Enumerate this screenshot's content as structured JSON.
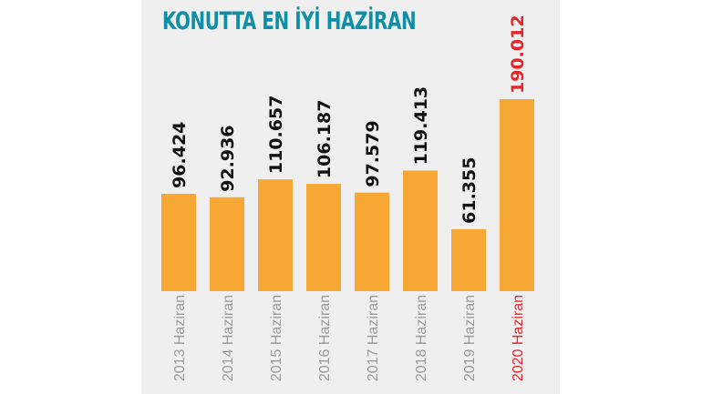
{
  "title": "KONUTTA EN İYİ HAZİRAN",
  "colors": {
    "title": "#0f8fa6",
    "bar": "#f7a733",
    "value_text": "#111111",
    "highlight_text": "#e4252b",
    "tick_text": "#9a9a9a",
    "background": "#efefef"
  },
  "chart_data": {
    "type": "bar",
    "categories": [
      "2013 Haziran",
      "2014 Haziran",
      "2015 Haziran",
      "2016 Haziran",
      "2017 Haziran",
      "2018 Haziran",
      "2019 Haziran",
      "2020 Haziran"
    ],
    "values": [
      96424,
      92936,
      110657,
      106187,
      97579,
      119413,
      61355,
      190012
    ],
    "value_labels": [
      "96.424",
      "92.936",
      "110.657",
      "106.187",
      "97.579",
      "119.413",
      "61.355",
      "190.012"
    ],
    "highlight_index": 7,
    "title": "KONUTTA EN İYİ HAZİRAN",
    "xlabel": "",
    "ylabel": "",
    "ylim": [
      0,
      190012
    ],
    "grid": false,
    "legend": "none"
  }
}
